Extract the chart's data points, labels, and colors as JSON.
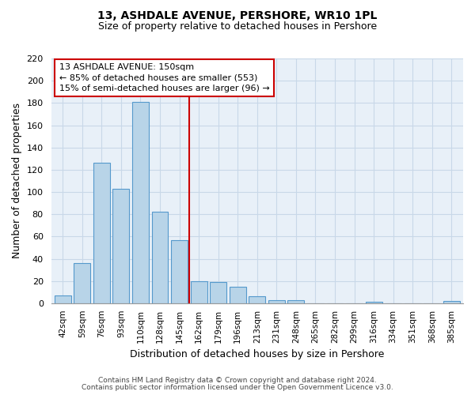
{
  "title": "13, ASHDALE AVENUE, PERSHORE, WR10 1PL",
  "subtitle": "Size of property relative to detached houses in Pershore",
  "xlabel": "Distribution of detached houses by size in Pershore",
  "ylabel": "Number of detached properties",
  "bar_labels": [
    "42sqm",
    "59sqm",
    "76sqm",
    "93sqm",
    "110sqm",
    "128sqm",
    "145sqm",
    "162sqm",
    "179sqm",
    "196sqm",
    "213sqm",
    "231sqm",
    "248sqm",
    "265sqm",
    "282sqm",
    "299sqm",
    "316sqm",
    "334sqm",
    "351sqm",
    "368sqm",
    "385sqm"
  ],
  "bar_values": [
    7,
    36,
    126,
    103,
    181,
    82,
    57,
    20,
    19,
    15,
    6,
    3,
    3,
    0,
    0,
    0,
    1,
    0,
    0,
    0,
    2
  ],
  "bar_color": "#b8d4e8",
  "bar_edge_color": "#5599cc",
  "bar_edge_width": 0.8,
  "vline_index": 6.0,
  "vline_color": "#cc0000",
  "annotation_lines": [
    "13 ASHDALE AVENUE: 150sqm",
    "← 85% of detached houses are smaller (553)",
    "15% of semi-detached houses are larger (96) →"
  ],
  "ylim": [
    0,
    220
  ],
  "yticks": [
    0,
    20,
    40,
    60,
    80,
    100,
    120,
    140,
    160,
    180,
    200,
    220
  ],
  "grid_color": "#c8d8e8",
  "background_color": "#e8f0f8",
  "footer1": "Contains HM Land Registry data © Crown copyright and database right 2024.",
  "footer2": "Contains public sector information licensed under the Open Government Licence v3.0.",
  "title_fontsize": 10,
  "subtitle_fontsize": 9,
  "ylabel_fontsize": 9,
  "xlabel_fontsize": 9,
  "tick_fontsize": 8,
  "footer_fontsize": 6.5,
  "annotation_fontsize": 8
}
